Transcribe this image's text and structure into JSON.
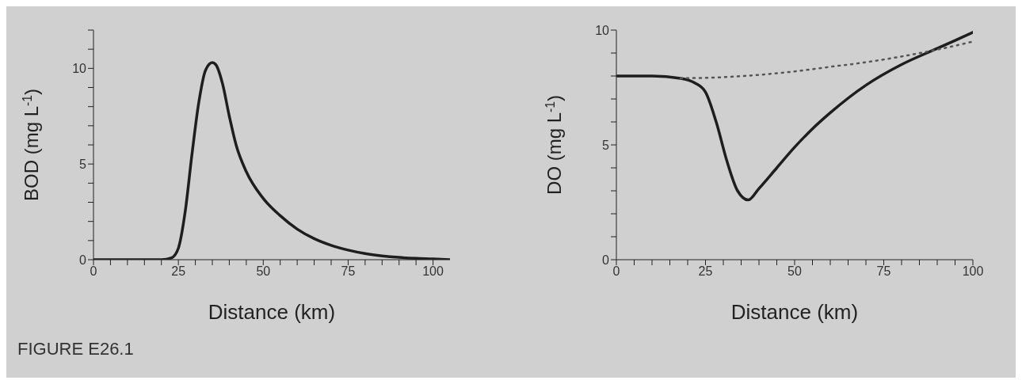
{
  "chart_data": [
    {
      "type": "line",
      "xlabel": "Distance (km)",
      "ylabel": "BOD (mg L$^{-1}$)",
      "xlim": [
        0,
        105
      ],
      "ylim": [
        0,
        12
      ],
      "xticks": [
        0,
        {
          "value": 5,
          "label": null
        },
        {
          "value": 10,
          "label": null
        },
        {
          "value": 15,
          "label": null
        },
        {
          "value": 20,
          "label": null
        },
        25,
        {
          "value": 30,
          "label": null
        },
        {
          "value": 35,
          "label": null
        },
        {
          "value": 40,
          "label": null
        },
        {
          "value": 45,
          "label": null
        },
        50,
        {
          "value": 55,
          "label": null
        },
        {
          "value": 60,
          "label": null
        },
        {
          "value": 65,
          "label": null
        },
        {
          "value": 70,
          "label": null
        },
        75,
        {
          "value": 80,
          "label": null
        },
        {
          "value": 85,
          "label": null
        },
        {
          "value": 90,
          "label": null
        },
        {
          "value": 95,
          "label": null
        },
        100
      ],
      "yticks": [
        0,
        {
          "value": 1,
          "label": null
        },
        {
          "value": 2,
          "label": null
        },
        {
          "value": 3,
          "label": null
        },
        {
          "value": 4,
          "label": null
        },
        5,
        {
          "value": 6,
          "label": null
        },
        {
          "value": 7,
          "label": null
        },
        {
          "value": 8,
          "label": null
        },
        {
          "value": 9,
          "label": null
        },
        10,
        {
          "value": 11,
          "label": null
        },
        {
          "value": 12,
          "label": null
        }
      ],
      "series": [
        {
          "color": "#1e1e1e",
          "line_style": "solid",
          "x": [
            0,
            10,
            20,
            23,
            25,
            27,
            29,
            31,
            33,
            35,
            36,
            38,
            40,
            42,
            45,
            50,
            55,
            60,
            65,
            70,
            75,
            80,
            85,
            90,
            95,
            100,
            105
          ],
          "values": [
            0,
            0,
            0,
            0.1,
            0.6,
            2.5,
            5.5,
            8.2,
            9.9,
            10.3,
            10.2,
            9.2,
            7.5,
            6.0,
            4.6,
            3.2,
            2.3,
            1.6,
            1.1,
            0.75,
            0.5,
            0.32,
            0.2,
            0.12,
            0.07,
            0.04,
            0
          ]
        }
      ],
      "annotations": [
        "FIGURE E26.1"
      ]
    },
    {
      "type": "line",
      "xlabel": "Distance (km)",
      "ylabel": "DO (mg L$^{-1}$)",
      "xlim": [
        0,
        100
      ],
      "ylim": [
        0,
        10
      ],
      "xticks": [
        0,
        {
          "value": 5,
          "label": null
        },
        {
          "value": 10,
          "label": null
        },
        {
          "value": 15,
          "label": null
        },
        {
          "value": 20,
          "label": null
        },
        25,
        {
          "value": 30,
          "label": null
        },
        {
          "value": 35,
          "label": null
        },
        {
          "value": 40,
          "label": null
        },
        {
          "value": 45,
          "label": null
        },
        50,
        {
          "value": 55,
          "label": null
        },
        {
          "value": 60,
          "label": null
        },
        {
          "value": 65,
          "label": null
        },
        {
          "value": 70,
          "label": null
        },
        75,
        {
          "value": 80,
          "label": null
        },
        {
          "value": 85,
          "label": null
        },
        {
          "value": 90,
          "label": null
        },
        {
          "value": 95,
          "label": null
        },
        100
      ],
      "yticks": [
        0,
        {
          "value": 1,
          "label": null
        },
        {
          "value": 2,
          "label": null
        },
        {
          "value": 3,
          "label": null
        },
        {
          "value": 4,
          "label": null
        },
        5,
        {
          "value": 6,
          "label": null
        },
        {
          "value": 7,
          "label": null
        },
        {
          "value": 8,
          "label": null
        },
        {
          "value": 9,
          "label": null
        },
        10
      ],
      "series": [
        {
          "color": "#1e1e1e",
          "line_style": "solid",
          "x": [
            0,
            10,
            18,
            22,
            25,
            28,
            31,
            34,
            37,
            40,
            45,
            50,
            55,
            60,
            70,
            80,
            90,
            100
          ],
          "values": [
            8,
            8,
            7.9,
            7.7,
            7.3,
            6.0,
            4.3,
            3.0,
            2.6,
            3.1,
            4.0,
            4.9,
            5.7,
            6.4,
            7.6,
            8.5,
            9.2,
            9.9
          ]
        },
        {
          "color": "#555555",
          "line_style": "dotted",
          "x": [
            18,
            30,
            40,
            50,
            60,
            70,
            80,
            90,
            100
          ],
          "values": [
            7.9,
            7.95,
            8.05,
            8.2,
            8.4,
            8.6,
            8.85,
            9.15,
            9.5
          ]
        }
      ]
    }
  ]
}
